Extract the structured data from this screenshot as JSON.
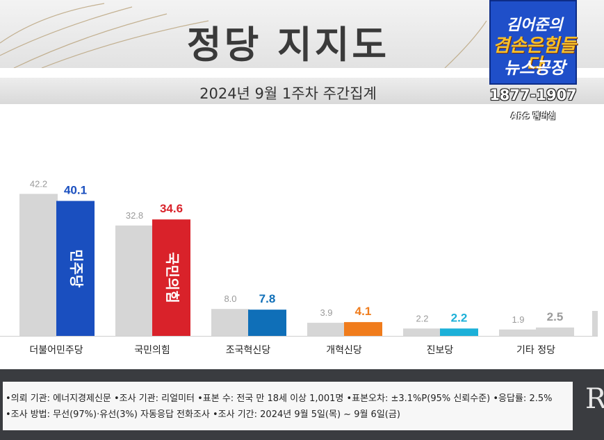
{
  "header": {
    "title": "정당 지지도",
    "subtitle": "2024년 9월 1주차 주간집계"
  },
  "logo": {
    "line1": "김어준의",
    "line2": "겸손은힘들다",
    "line3": "뉴스공장",
    "phone": "1877-1907",
    "ars": "ARS 멤버십"
  },
  "colors": {
    "previous": "#d6d6d6",
    "더불어민주당": "#1a4fbf",
    "국민의힘": "#d9222a",
    "조국혁신당": "#0f6fb8",
    "개혁신당": "#f07c1c",
    "진보당": "#1cb0d8",
    "기타 정당": "#d6d6d6"
  },
  "chart_data": {
    "type": "bar",
    "categories": [
      "더불어민주당",
      "국민의힘",
      "조국혁신당",
      "개혁신당",
      "진보당",
      "기타 정당"
    ],
    "series": [
      {
        "values": [
          42.2,
          32.8,
          8.0,
          3.9,
          2.2,
          1.9
        ],
        "labels": [
          "42.2",
          "32.8",
          "8.0",
          "3.9",
          "2.2",
          "1.9"
        ]
      },
      {
        "values": [
          40.1,
          34.6,
          7.8,
          4.1,
          2.2,
          2.5
        ],
        "labels": [
          "40.1",
          "34.6",
          "7.8",
          "4.1",
          "2.2",
          "2.5"
        ]
      }
    ],
    "bar_inner_labels": [
      "민주당",
      "국민의힘"
    ],
    "grid": false,
    "ylim": [
      0,
      50
    ]
  },
  "footer": {
    "line1": "•의뢰 기관: 에너지경제신문  •조사 기관: 리얼미터  •표본 수: 전국 만 18세 이상 1,001명  •표본오차: ±3.1%P(95% 신뢰수준)  •응답률: 2.5%",
    "line2": "•조사 방법: 무선(97%)·유선(3%) 자동응답 전화조사  •조사 기간: 2024년 9월 5일(목) ~ 9월 6일(금)",
    "logo_letters": "RE"
  }
}
